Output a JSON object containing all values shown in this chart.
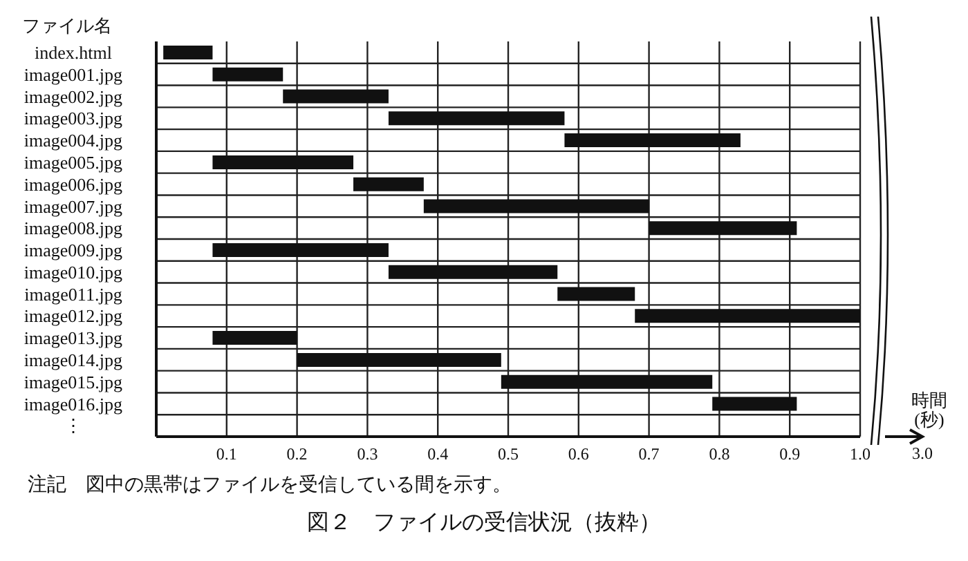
{
  "chart_data": {
    "type": "bar",
    "orientation": "horizontal",
    "title": "図２　ファイルの受信状況（抜粋）",
    "ylabel": "ファイル名",
    "xlabel": "時間\n(秒)",
    "categories": [
      "index.html",
      "image001.jpg",
      "image002.jpg",
      "image003.jpg",
      "image004.jpg",
      "image005.jpg",
      "image006.jpg",
      "image007.jpg",
      "image008.jpg",
      "image009.jpg",
      "image010.jpg",
      "image011.jpg",
      "image012.jpg",
      "image013.jpg",
      "image014.jpg",
      "image015.jpg",
      "image016.jpg",
      "⋮"
    ],
    "base": [
      0.01,
      0.08,
      0.18,
      0.33,
      0.58,
      0.08,
      0.28,
      0.38,
      0.7,
      0.08,
      0.33,
      0.57,
      0.68,
      0.08,
      0.2,
      0.49,
      0.79,
      null
    ],
    "values": [
      0.07,
      0.1,
      0.15,
      0.25,
      0.25,
      0.2,
      0.1,
      0.32,
      0.21,
      0.25,
      0.24,
      0.11,
      0.32,
      0.12,
      0.29,
      0.3,
      0.12,
      null
    ],
    "color": "#111111",
    "xlim": [
      0,
      1.0
    ],
    "xticks": [
      0.1,
      0.2,
      0.3,
      0.4,
      0.5,
      0.6,
      0.7,
      0.8,
      0.9,
      {
        "value": 1.0,
        "label": "1.0"
      }
    ],
    "grid": true,
    "annotations": [
      "3.0",
      "注記　図中の黒帯はファイルを受信している間を示す。"
    ]
  }
}
